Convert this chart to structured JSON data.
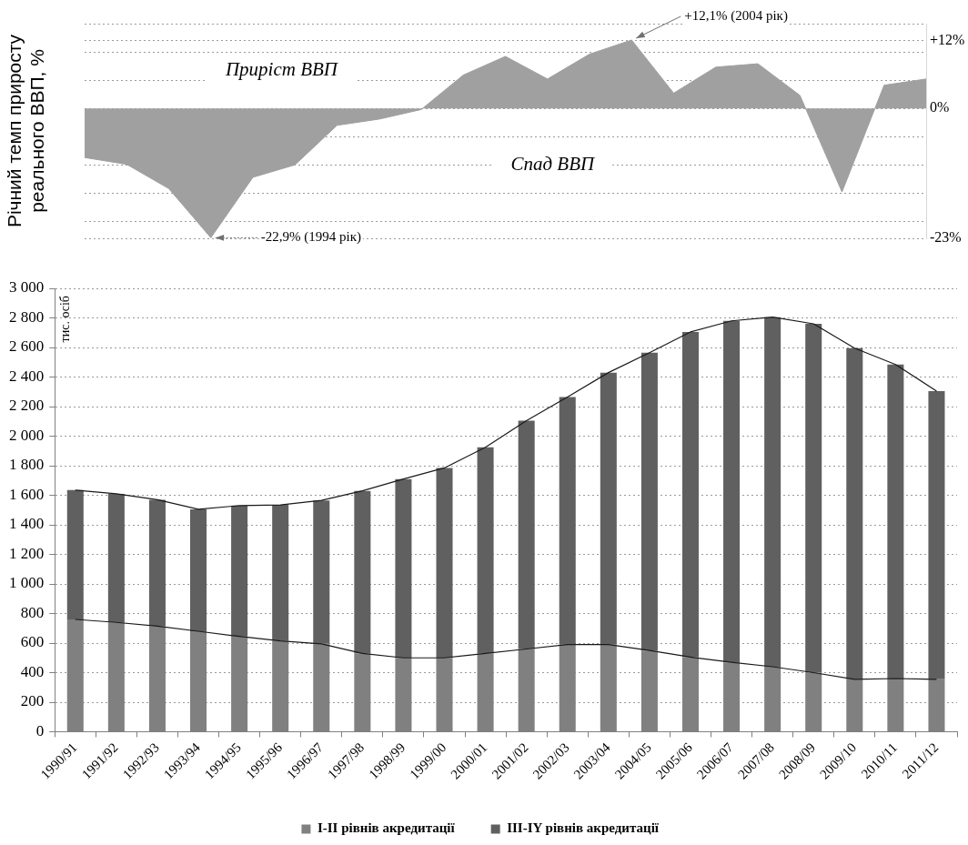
{
  "chart_data": [
    {
      "type": "area",
      "ylabel": "Річний темп приросту реального ВВП, %",
      "categories": [
        null,
        null,
        null,
        null,
        null,
        null,
        null,
        null,
        null,
        null,
        null,
        null,
        null,
        null,
        null,
        null,
        null,
        null,
        null,
        null,
        null
      ],
      "values": [
        -8.7,
        -9.9,
        -14.2,
        -22.9,
        -12.2,
        -10.0,
        -3.0,
        -1.9,
        -0.2,
        5.9,
        9.2,
        5.2,
        9.6,
        12.1,
        2.7,
        7.3,
        7.9,
        2.3,
        -14.8,
        4.1,
        5.2
      ],
      "color": "#a0a0a0",
      "ylim": [
        -23,
        15
      ],
      "yticks": [
        {
          "value": 15,
          "label": null
        },
        {
          "value": 12,
          "label": "+12%"
        },
        {
          "value": 10,
          "label": null
        },
        {
          "value": 5,
          "label": null
        },
        {
          "value": 0,
          "label": "0%"
        },
        {
          "value": -5,
          "label": null
        },
        {
          "value": -10,
          "label": null
        },
        {
          "value": -15,
          "label": null
        },
        {
          "value": -20,
          "label": null
        },
        {
          "value": -23,
          "label": "-23%"
        }
      ],
      "grid": "y",
      "annotations": [
        "Приріст ВВП",
        "Спад ВВП",
        "+12,1% (2004 рік)",
        "-22,9% (1994 рік)"
      ]
    },
    {
      "type": "bar",
      "ylabel": "тис. осіб",
      "stacked": true,
      "legend": "bottom",
      "grid": "y",
      "categories": [
        "1990/91",
        "1991/92",
        "1992/93",
        "1993/94",
        "1994/95",
        "1995/96",
        "1996/97",
        "1997/98",
        "1998/99",
        "1999/00",
        "2000/01",
        "2001/02",
        "2002/03",
        "2003/04",
        "2004/05",
        "2005/06",
        "2006/07",
        "2007/08",
        "2008/09",
        "2009/10",
        "2010/11",
        "2011/12"
      ],
      "series": [
        {
          "name": "I-II рівнів акредитації",
          "color": "#808080",
          "values": [
            760,
            740,
            715,
            680,
            645,
            615,
            595,
            530,
            500,
            500,
            530,
            560,
            590,
            590,
            550,
            505,
            470,
            440,
            400,
            355,
            360,
            355
          ]
        },
        {
          "name": "III-IY рівнів акредитації",
          "color": "#606060",
          "values": [
            875,
            870,
            855,
            825,
            885,
            920,
            970,
            1100,
            1210,
            1285,
            1395,
            1545,
            1675,
            1840,
            2015,
            2200,
            2310,
            2365,
            2360,
            2240,
            2125,
            1950
          ]
        },
        {
          "type": "line",
          "color": "#1a1a1a",
          "values": [
            760,
            740,
            715,
            680,
            645,
            615,
            595,
            530,
            500,
            500,
            530,
            560,
            590,
            590,
            550,
            505,
            470,
            440,
            400,
            355,
            360,
            355
          ]
        },
        {
          "type": "line",
          "color": "#1a1a1a",
          "values": [
            1635,
            1610,
            1570,
            1505,
            1530,
            1535,
            1565,
            1630,
            1710,
            1785,
            1925,
            2105,
            2265,
            2430,
            2565,
            2705,
            2780,
            2805,
            2760,
            2595,
            2485,
            2305
          ]
        }
      ],
      "ylim": [
        0,
        3000
      ],
      "yticks": [
        0,
        200,
        400,
        600,
        800,
        {
          "value": 1000,
          "label": "1 000"
        },
        {
          "value": 1200,
          "label": "1 200"
        },
        {
          "value": 1400,
          "label": "1 400"
        },
        {
          "value": 1600,
          "label": "1 600"
        },
        {
          "value": 1800,
          "label": "1 800"
        },
        {
          "value": 2000,
          "label": "2 000"
        },
        {
          "value": 2200,
          "label": "2 200"
        },
        {
          "value": 2400,
          "label": "2 400"
        },
        {
          "value": 2600,
          "label": "2 600"
        },
        {
          "value": 2800,
          "label": "2 800"
        },
        {
          "value": 3000,
          "label": "3 000"
        }
      ]
    }
  ]
}
